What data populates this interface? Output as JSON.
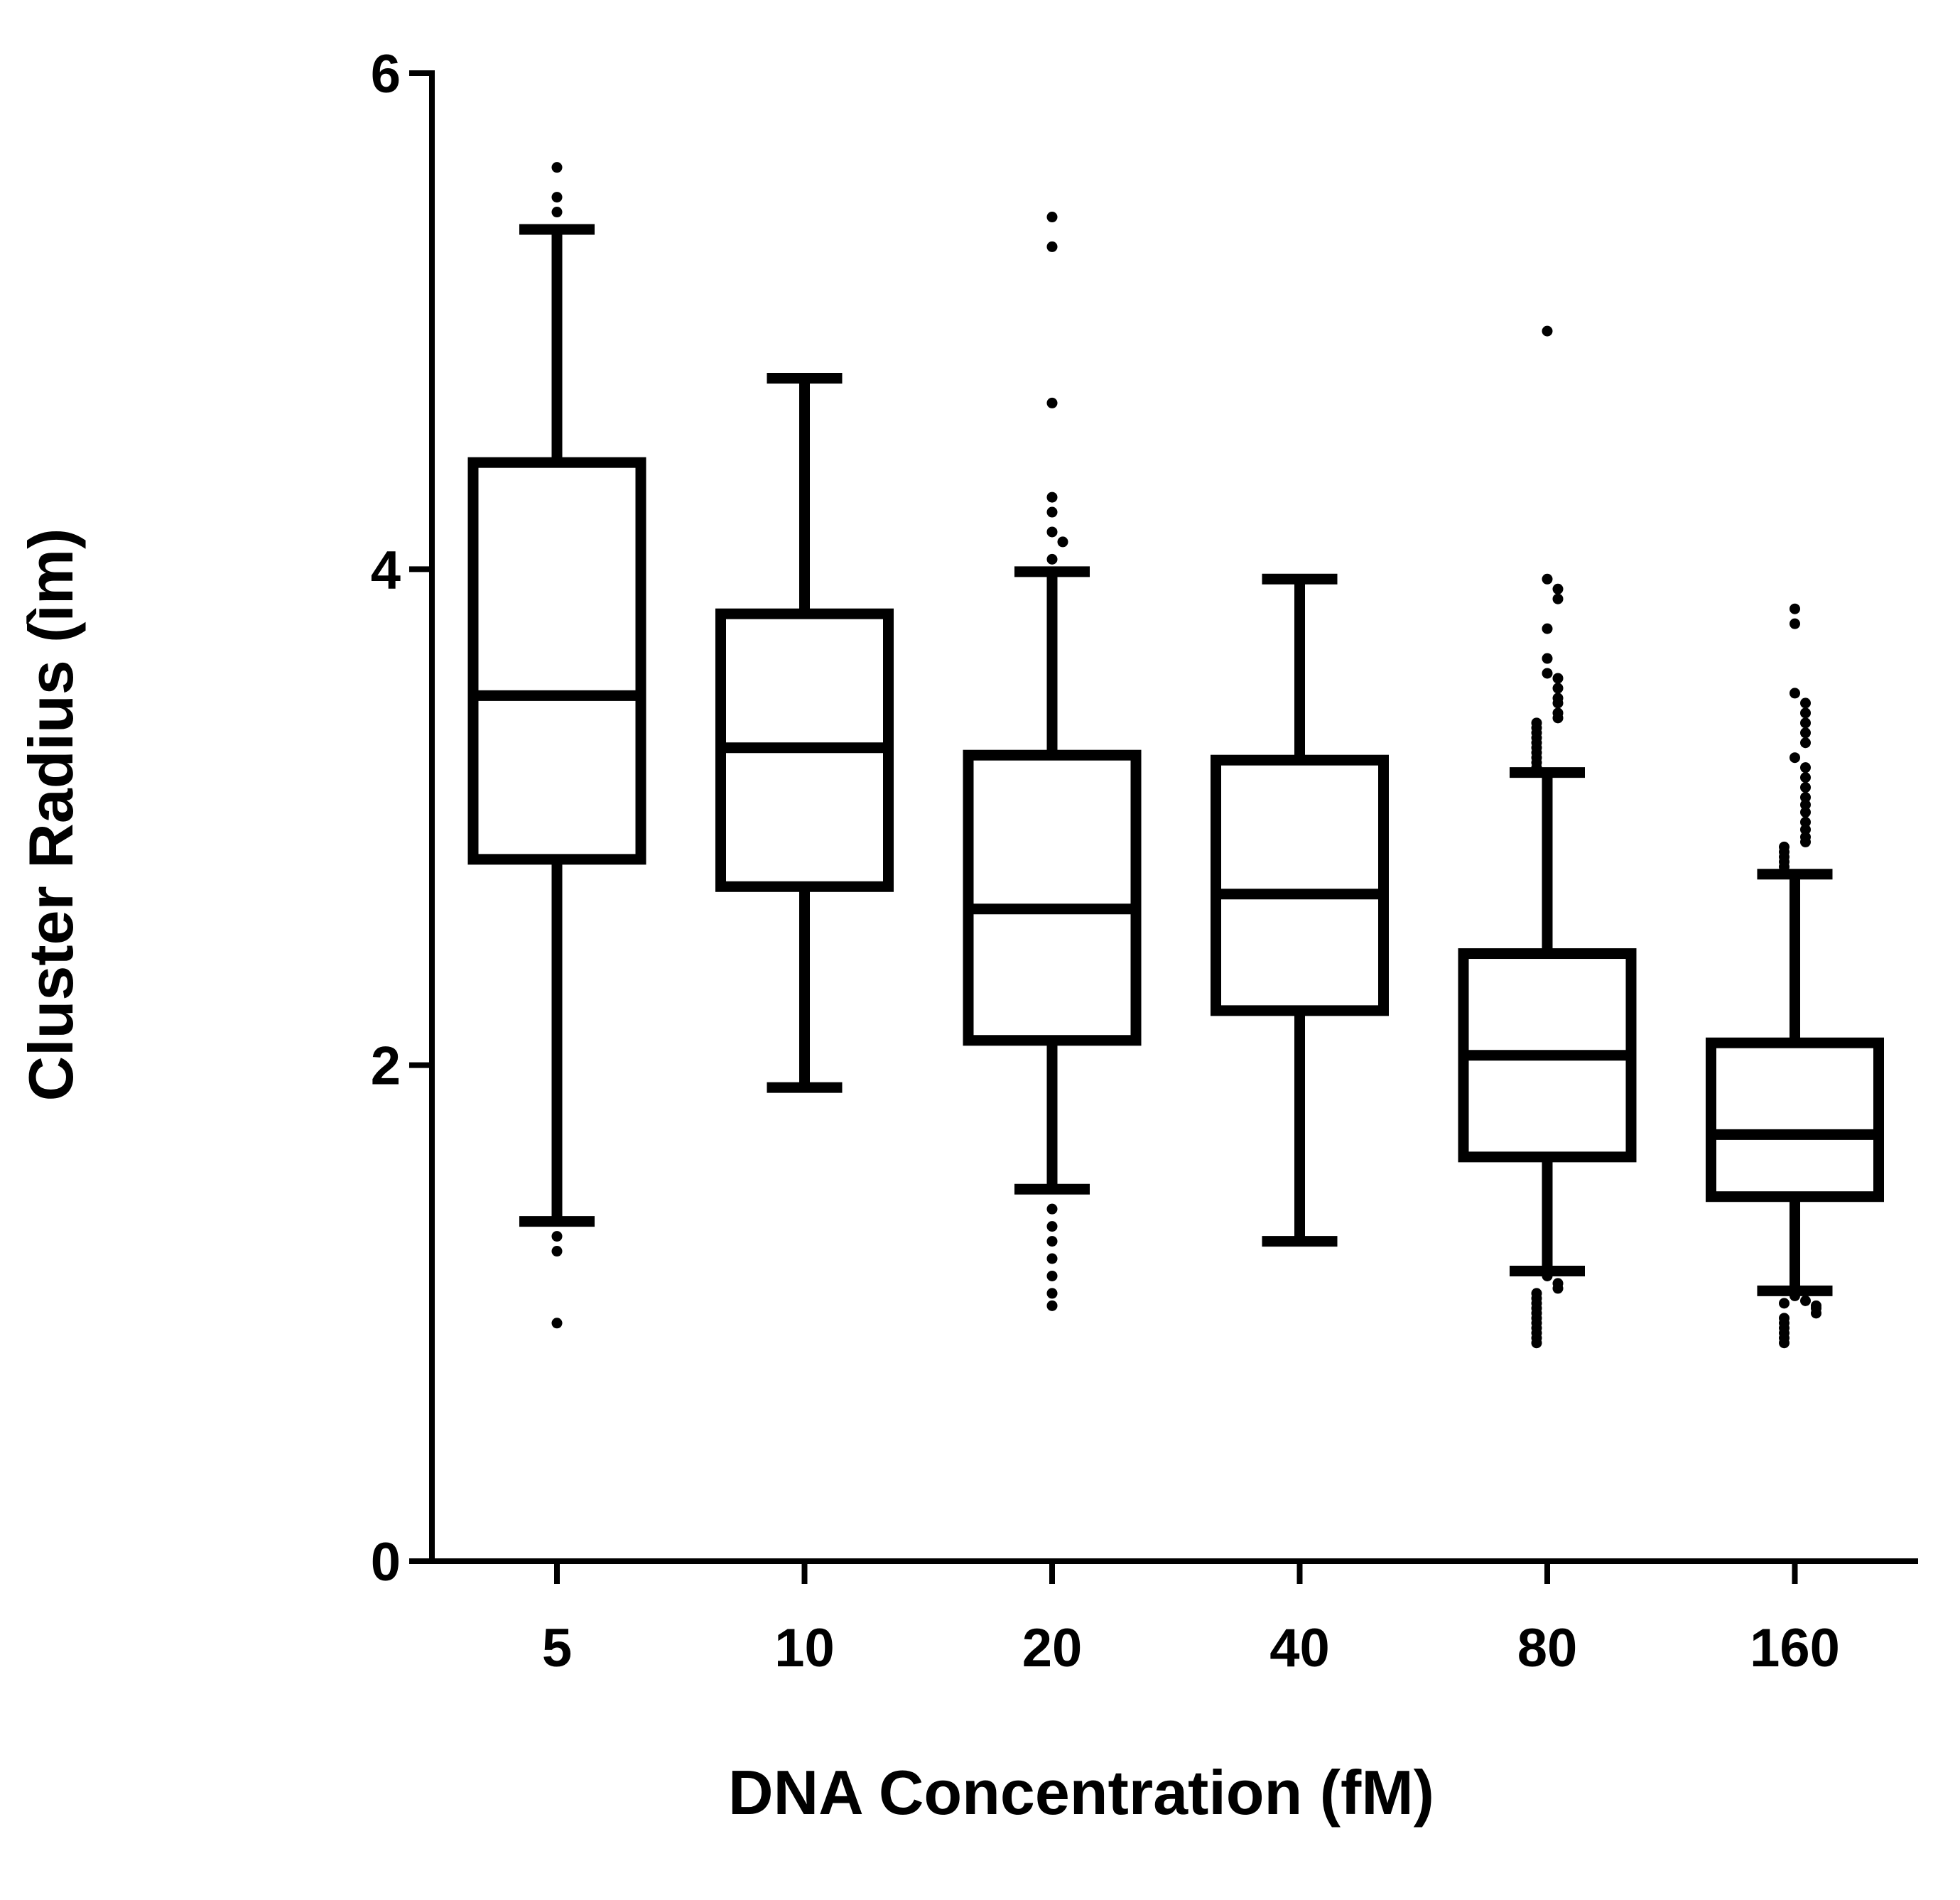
{
  "chart_data": {
    "type": "box",
    "xlabel": "DNA Concentration (fM)",
    "ylabel": "Cluster Radius (ìm)",
    "ylim": [
      0,
      6
    ],
    "yticks": [
      0,
      2,
      4,
      6
    ],
    "grid": false,
    "categories": [
      "5",
      "10",
      "20",
      "40",
      "80",
      "160"
    ],
    "boxes": [
      {
        "category": "5",
        "whisker_low": 1.37,
        "q1": 2.83,
        "median": 3.49,
        "q3": 4.43,
        "whisker_high": 5.37,
        "outliers": [
          5.62,
          5.5,
          5.44,
          1.31,
          1.25,
          0.96
        ]
      },
      {
        "category": "10",
        "whisker_low": 1.91,
        "q1": 2.72,
        "median": 3.28,
        "q3": 3.82,
        "whisker_high": 4.77,
        "outliers": []
      },
      {
        "category": "20",
        "whisker_low": 1.5,
        "q1": 2.1,
        "median": 2.63,
        "q3": 3.25,
        "whisker_high": 3.99,
        "outliers": [
          5.42,
          5.3,
          4.67,
          4.29,
          4.23,
          4.15,
          4.11,
          4.04,
          1.42,
          1.35,
          1.29,
          1.22,
          1.15,
          1.08,
          1.03
        ]
      },
      {
        "category": "40",
        "whisker_low": 1.29,
        "q1": 2.22,
        "median": 2.69,
        "q3": 3.23,
        "whisker_high": 3.96,
        "outliers": []
      },
      {
        "category": "80",
        "whisker_low": 1.17,
        "q1": 1.63,
        "median": 2.04,
        "q3": 2.45,
        "whisker_high": 3.18,
        "outliers": [
          4.96,
          3.96,
          3.92,
          3.88,
          3.76,
          3.64,
          3.58,
          3.56,
          3.52,
          3.48,
          3.46,
          3.42,
          3.4,
          3.38,
          3.36,
          3.34,
          3.32,
          3.3,
          3.28,
          3.26,
          3.24,
          3.22,
          3.2,
          1.15,
          1.12,
          1.1,
          1.08,
          1.06,
          1.04,
          1.02,
          1.0,
          0.98,
          0.96,
          0.94,
          0.92,
          0.9,
          0.88
        ]
      },
      {
        "category": "160",
        "whisker_low": 1.09,
        "q1": 1.47,
        "median": 1.72,
        "q3": 2.09,
        "whisker_high": 2.77,
        "outliers": [
          3.84,
          3.78,
          3.5,
          3.46,
          3.42,
          3.38,
          3.34,
          3.3,
          3.24,
          3.2,
          3.16,
          3.12,
          3.08,
          3.05,
          3.02,
          2.98,
          2.95,
          2.92,
          2.9,
          2.88,
          2.86,
          2.84,
          2.82,
          2.8,
          1.07,
          1.05,
          1.04,
          1.03,
          1.02,
          1.0,
          0.98,
          0.96,
          0.94,
          0.92,
          0.9,
          0.88
        ]
      }
    ]
  }
}
